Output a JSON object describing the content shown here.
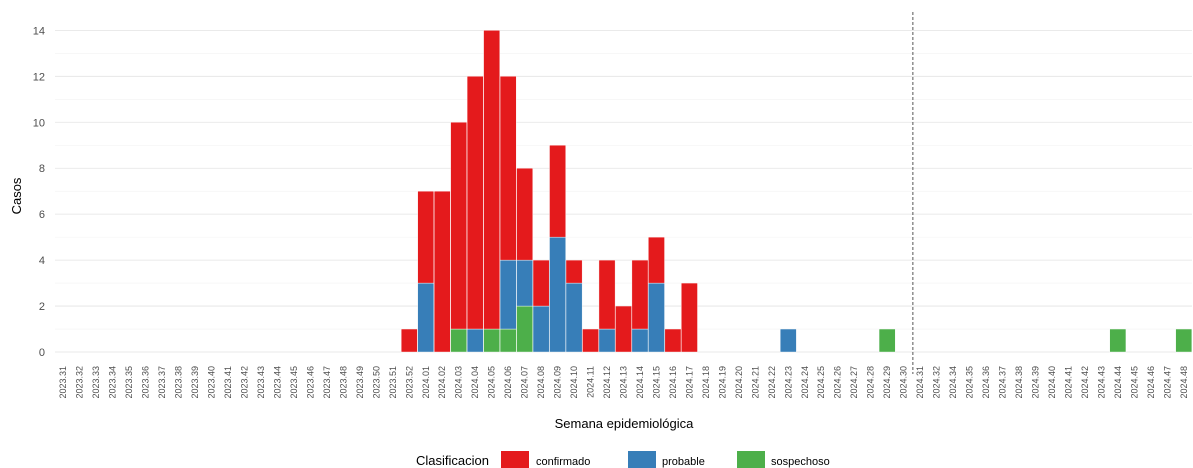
{
  "chart_data": {
    "type": "bar",
    "stacked": true,
    "xlabel": "Semana epidemiológica",
    "ylabel": "Casos",
    "ylim": [
      0,
      14.8
    ],
    "yticks": [
      0,
      2,
      4,
      6,
      8,
      10,
      12,
      14
    ],
    "grid": true,
    "reference_line": {
      "category": "2024.31",
      "style": "dashed"
    },
    "legend": {
      "title": "Clasificacion",
      "position": "bottom"
    },
    "categories": [
      "2023.31",
      "2023.32",
      "2023.33",
      "2023.34",
      "2023.35",
      "2023.36",
      "2023.37",
      "2023.38",
      "2023.39",
      "2023.40",
      "2023.41",
      "2023.42",
      "2023.43",
      "2023.44",
      "2023.45",
      "2023.46",
      "2023.47",
      "2023.48",
      "2023.49",
      "2023.50",
      "2023.51",
      "2023.52",
      "2024.01",
      "2024.02",
      "2024.03",
      "2024.04",
      "2024.05",
      "2024.06",
      "2024.07",
      "2024.08",
      "2024.09",
      "2024.10",
      "2024.11",
      "2024.12",
      "2024.13",
      "2024.14",
      "2024.15",
      "2024.16",
      "2024.17",
      "2024.18",
      "2024.19",
      "2024.20",
      "2024.21",
      "2024.22",
      "2024.23",
      "2024.24",
      "2024.25",
      "2024.26",
      "2024.27",
      "2024.28",
      "2024.29",
      "2024.30",
      "2024.31",
      "2024.32",
      "2024.34",
      "2024.35",
      "2024.36",
      "2024.37",
      "2024.38",
      "2024.39",
      "2024.40",
      "2024.41",
      "2024.42",
      "2024.43",
      "2024.44",
      "2024.45",
      "2024.46",
      "2024.47",
      "2024.48"
    ],
    "series": [
      {
        "name": "sospechoso",
        "color": "#4DAF4A",
        "values": {
          "2024.03": 1,
          "2024.05": 1,
          "2024.06": 1,
          "2024.07": 2,
          "2024.29": 1,
          "2024.44": 1,
          "2024.48": 1
        }
      },
      {
        "name": "probable",
        "color": "#377EB8",
        "values": {
          "2024.01": 3,
          "2024.04": 1,
          "2024.06": 3,
          "2024.07": 2,
          "2024.08": 2,
          "2024.09": 5,
          "2024.10": 3,
          "2024.12": 1,
          "2024.14": 1,
          "2024.15": 3,
          "2024.23": 1
        }
      },
      {
        "name": "confirmado",
        "color": "#E41A1C",
        "values": {
          "2023.52": 1,
          "2024.01": 4,
          "2024.02": 7,
          "2024.03": 9,
          "2024.04": 11,
          "2024.05": 13,
          "2024.06": 8,
          "2024.07": 4,
          "2024.08": 2,
          "2024.09": 4,
          "2024.10": 1,
          "2024.11": 1,
          "2024.12": 3,
          "2024.13": 2,
          "2024.14": 3,
          "2024.15": 2,
          "2024.16": 1,
          "2024.17": 3
        }
      }
    ]
  }
}
